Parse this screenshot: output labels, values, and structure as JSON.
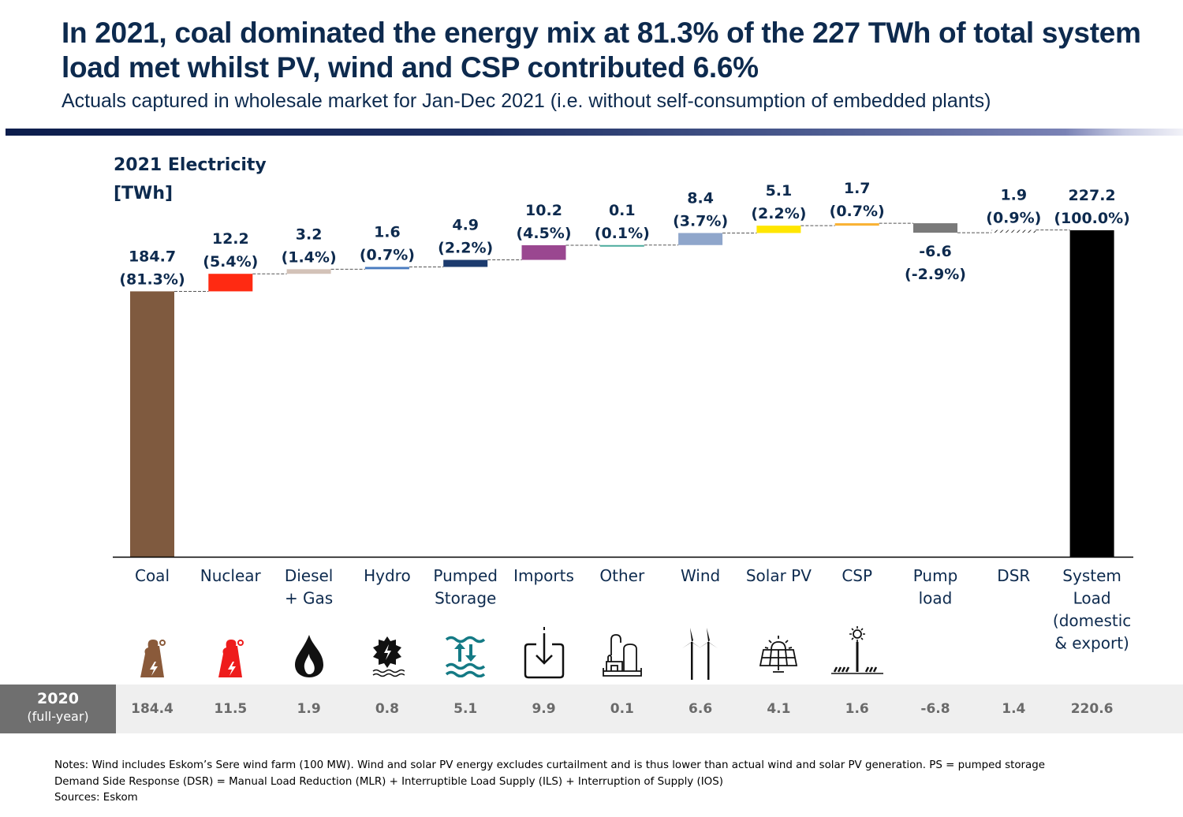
{
  "header": {
    "title": "In 2021, coal dominated the energy mix at 81.3% of the 227 TWh of total system load met whilst PV, wind and CSP contributed 6.6%",
    "subtitle": "Actuals captured in wholesale market for Jan-Dec 2021 (i.e. without self-consumption of embedded plants)"
  },
  "chart_data": {
    "type": "bar",
    "subtype": "waterfall",
    "title": "2021 Electricity",
    "unit_label": "[TWh]",
    "xlabel": "",
    "ylabel": "TWh",
    "ylim": [
      0,
      227.2
    ],
    "grid": false,
    "categories": [
      "Coal",
      "Nuclear",
      "Diesel + Gas",
      "Hydro",
      "Pumped Storage",
      "Imports",
      "Other",
      "Wind",
      "Solar PV",
      "CSP",
      "Pump load",
      "DSR",
      "System Load (domestic & export)"
    ],
    "category_lines": [
      [
        "Coal"
      ],
      [
        "Nuclear"
      ],
      [
        "Diesel",
        "+ Gas"
      ],
      [
        "Hydro"
      ],
      [
        "Pumped",
        "Storage"
      ],
      [
        "Imports"
      ],
      [
        "Other"
      ],
      [
        "Wind"
      ],
      [
        "Solar PV"
      ],
      [
        "CSP"
      ],
      [
        "Pump",
        "load"
      ],
      [
        "DSR"
      ],
      [
        "System",
        "Load",
        "(domestic",
        "& export)"
      ]
    ],
    "values": [
      184.7,
      12.2,
      3.2,
      1.6,
      4.9,
      10.2,
      0.1,
      8.4,
      5.1,
      1.7,
      -6.6,
      1.9,
      227.2
    ],
    "value_labels": [
      "184.7",
      "12.2",
      "3.2",
      "1.6",
      "4.9",
      "10.2",
      "0.1",
      "8.4",
      "5.1",
      "1.7",
      "-6.6",
      "1.9",
      "227.2"
    ],
    "percent_labels": [
      "(81.3%)",
      "(5.4%)",
      "(1.4%)",
      "(0.7%)",
      "(2.2%)",
      "(4.5%)",
      "(0.1%)",
      "(3.7%)",
      "(2.2%)",
      "(0.7%)",
      "(-2.9%)",
      "(0.9%)",
      "(100.0%)"
    ],
    "bar_kinds": [
      "total",
      "delta",
      "delta",
      "delta",
      "delta",
      "delta",
      "delta",
      "delta",
      "delta",
      "delta",
      "delta",
      "delta-hatched",
      "total"
    ],
    "colors": [
      "#7f5a3f",
      "#ff2a12",
      "#d3c2b8",
      "#4a7cc0",
      "#1c3b6e",
      "#9a4790",
      "#4bab9c",
      "#8fa6cb",
      "#ffe600",
      "#f9b233",
      "#7a7a7a",
      "#555555",
      "#000000"
    ],
    "icons": [
      "coal-plant-icon",
      "nuclear-plant-icon",
      "flame-icon",
      "hydro-turbine-icon",
      "pumped-storage-icon",
      "import-icon",
      "industrial-plant-icon",
      "wind-turbine-icon",
      "solar-panel-icon",
      "csp-tower-icon",
      "",
      "",
      ""
    ],
    "comparison_row": {
      "label": "2020",
      "sublabel": "(full-year)",
      "values": [
        "184.4",
        "11.5",
        "1.9",
        "0.8",
        "5.1",
        "9.9",
        "0.1",
        "6.6",
        "4.1",
        "1.6",
        "-6.8",
        "1.4",
        "220.6"
      ]
    }
  },
  "icon_colors": {
    "coal": "#8a5a3a",
    "nuclear": "#ee1c1c",
    "pumped_storage": "#147a85",
    "default": "#111111"
  },
  "notes": {
    "line1": "Notes: Wind includes Eskom’s Sere wind farm (100 MW). Wind and solar PV energy excludes curtailment and is thus lower than actual wind and solar PV generation. PS = pumped storage",
    "line2": "Demand Side Response (DSR) = Manual Load Reduction (MLR) + Interruptible Load Supply (ILS) + Interruption of Supply (IOS)",
    "line3": "Sources: Eskom"
  }
}
